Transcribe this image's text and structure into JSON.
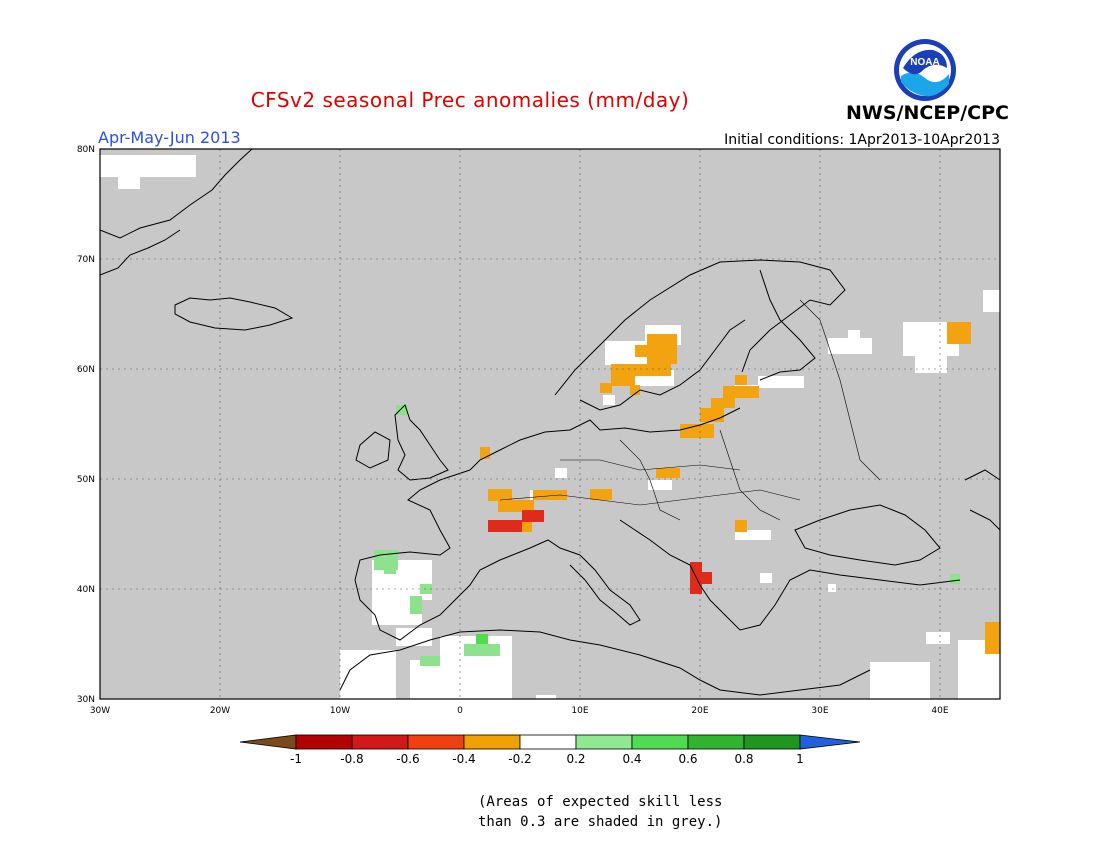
{
  "header": {
    "title": "CFSv2 seasonal Prec anomalies (mm/day)",
    "season": "Apr-May-Jun 2013",
    "initial_conditions": "Initial conditions: 1Apr2013-10Apr2013",
    "org": "NWS/NCEP/CPC",
    "logo_text": "NOAA"
  },
  "axes": {
    "lon_labels": [
      "30W",
      "20W",
      "10W",
      "0",
      "10E",
      "20E",
      "30E",
      "40E"
    ],
    "lat_labels": [
      "30N",
      "40N",
      "50N",
      "60N",
      "70N",
      "80N"
    ]
  },
  "colorbar": {
    "labels": [
      "-1",
      "-0.8",
      "-0.6",
      "-0.4",
      "-0.2",
      "0.2",
      "0.4",
      "0.6",
      "0.8",
      "1"
    ],
    "colors": [
      "#7a4a1a",
      "#b40000",
      "#d21818",
      "#f04010",
      "#f0a000",
      "#ffffff",
      "#90e890",
      "#50dc50",
      "#30b430",
      "#1e9620",
      "#2060e0"
    ]
  },
  "colors": {
    "grey_mask": "#c8c8c8",
    "negative_strong": "#e02a1c",
    "negative": "#f2a30f",
    "positive": "#8ee28e",
    "neutral": "#ffffff"
  },
  "note": [
    "(Areas of expected skill less",
    "than 0.3 are shaded in grey.)"
  ]
}
